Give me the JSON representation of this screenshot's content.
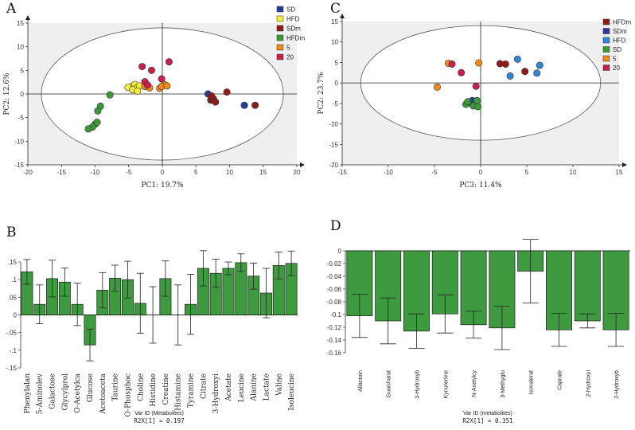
{
  "chart_data": [
    {
      "panel": "A",
      "type": "scatter",
      "xlabel": "PC1: 19.7%",
      "ylabel": "PC2: 12.6%",
      "xlim": [
        -20,
        20
      ],
      "ylim": [
        -15,
        15
      ],
      "xticks": [
        -20,
        -15,
        -10,
        -5,
        0,
        5,
        10,
        15,
        20
      ],
      "yticks": [
        -15,
        -10,
        -5,
        0,
        5,
        10,
        15
      ],
      "ellipse": {
        "cx": 0,
        "cy": 0,
        "rx": 18,
        "ry": 14
      },
      "legend": [
        {
          "name": "SD",
          "color": "#2a3c98"
        },
        {
          "name": "HFD",
          "color": "#f4ee3a"
        },
        {
          "name": "SDm",
          "color": "#8f1b1b"
        },
        {
          "name": "HFDm",
          "color": "#3a9a3a"
        },
        {
          "name": "5",
          "color": "#f08a1a"
        },
        {
          "name": "20",
          "color": "#c8204a"
        }
      ],
      "series": [
        {
          "name": "SD",
          "color": "#2a3c98",
          "points": [
            [
              6.8,
              0
            ],
            [
              12.2,
              -2.4
            ]
          ]
        },
        {
          "name": "HFD",
          "color": "#f4ee3a",
          "points": [
            [
              -4.6,
              1.6
            ],
            [
              -4.1,
              2
            ],
            [
              -3.9,
              1.2
            ],
            [
              -3.4,
              1.7
            ],
            [
              -5.1,
              1.4
            ],
            [
              -4.4,
              0.9
            ],
            [
              -3.7,
              0.6
            ]
          ]
        },
        {
          "name": "SDm",
          "color": "#8f1b1b",
          "points": [
            [
              7.2,
              -1.3
            ],
            [
              7.6,
              -1
            ],
            [
              7.9,
              -1.7
            ],
            [
              9.6,
              0.4
            ],
            [
              13.8,
              -2.4
            ],
            [
              7.3,
              -0.4
            ]
          ]
        },
        {
          "name": "HFDm",
          "color": "#3a9a3a",
          "points": [
            [
              -7.8,
              -0.2
            ],
            [
              -9.2,
              -2.6
            ],
            [
              -9.6,
              -3.6
            ],
            [
              -10,
              -6.4
            ],
            [
              -10.4,
              -7
            ],
            [
              -11,
              -7.4
            ],
            [
              -9.7,
              -6
            ]
          ]
        },
        {
          "name": "5",
          "color": "#f08a1a",
          "points": [
            [
              -0.4,
              1.2
            ],
            [
              0.3,
              2
            ],
            [
              -2.6,
              1.6
            ],
            [
              -1.9,
              1.3
            ],
            [
              -0.1,
              1.6
            ],
            [
              0.7,
              1.7
            ]
          ]
        },
        {
          "name": "20",
          "color": "#c8204a",
          "points": [
            [
              -3,
              5.8
            ],
            [
              -2.6,
              2.6
            ],
            [
              -1.6,
              5
            ],
            [
              1,
              6.8
            ],
            [
              -0.1,
              3.2
            ],
            [
              -2.2,
              1.9
            ]
          ]
        }
      ]
    },
    {
      "panel": "C",
      "type": "scatter",
      "xlabel": "PC3: 11.4%",
      "ylabel": "PC2: 23.7%",
      "xlim": [
        -15,
        15
      ],
      "ylim": [
        -20,
        15
      ],
      "xticks": [
        -15,
        -10,
        -5,
        0,
        5,
        10,
        15
      ],
      "yticks": [
        -20,
        -15,
        -10,
        -5,
        0,
        5,
        10,
        15
      ],
      "ellipse": {
        "cx": 0,
        "cy": 0,
        "rx": 13,
        "ry": 14
      },
      "legend": [
        {
          "name": "HFDm",
          "color": "#8f1b1b"
        },
        {
          "name": "SDm",
          "color": "#2a3c98"
        },
        {
          "name": "HFD",
          "color": "#2f86d6"
        },
        {
          "name": "SD",
          "color": "#3a9a3a"
        },
        {
          "name": "5",
          "color": "#f08a1a"
        },
        {
          "name": "20",
          "color": "#c8204a"
        }
      ],
      "series": [
        {
          "name": "HFDm",
          "color": "#8f1b1b",
          "points": [
            [
              2.1,
              4.7
            ],
            [
              2.7,
              4.6
            ],
            [
              4.8,
              2.8
            ]
          ]
        },
        {
          "name": "SDm",
          "color": "#2a3c98",
          "points": [
            [
              -1.2,
              -4.8
            ],
            [
              -0.9,
              -4.3
            ],
            [
              -0.6,
              -4.5
            ]
          ]
        },
        {
          "name": "HFD",
          "color": "#2f86d6",
          "points": [
            [
              3.2,
              1.7
            ],
            [
              4,
              5.8
            ],
            [
              6.1,
              2.4
            ],
            [
              6.4,
              4.3
            ]
          ]
        },
        {
          "name": "SD",
          "color": "#3a9a3a",
          "points": [
            [
              -1.6,
              -5.2
            ],
            [
              -0.8,
              -5.6
            ],
            [
              -0.3,
              -5.8
            ],
            [
              -1.4,
              -4.6
            ],
            [
              -0.4,
              -4.3
            ]
          ]
        },
        {
          "name": "5",
          "color": "#f08a1a",
          "points": [
            [
              -4.7,
              -1
            ],
            [
              -3.5,
              4.8
            ],
            [
              -0.2,
              4.9
            ]
          ]
        },
        {
          "name": "20",
          "color": "#c8204a",
          "points": [
            [
              -3.1,
              4.6
            ],
            [
              -2.1,
              2.5
            ],
            [
              -0.5,
              -0.8
            ]
          ]
        }
      ]
    },
    {
      "panel": "B",
      "type": "bar",
      "categories": [
        "Phenylalan",
        "5-Aminolev",
        "Galactose",
        "Glycylprol",
        "O-Acetylca",
        "Glucose",
        "Acetoaceta",
        "Taurine",
        "O-Phosphoc",
        "Choline",
        "Histidine",
        "Creatine",
        "Histamine",
        "Tyramine",
        "Citrate",
        "3-Hydroxyi",
        "Acetate",
        "Leucine",
        "Alanine",
        "Lactate",
        "Valine",
        "Isoleucine"
      ],
      "values": [
        0.122,
        0.03,
        0.103,
        0.093,
        0.03,
        -0.085,
        0.07,
        0.104,
        0.1,
        0.033,
        0,
        0.103,
        0,
        0.03,
        0.132,
        0.118,
        0.132,
        0.148,
        0.11,
        0.062,
        0.14,
        0.146
      ],
      "err": [
        0.035,
        0.055,
        0.052,
        0.04,
        0.06,
        0.045,
        0.05,
        0.037,
        0.052,
        0.085,
        0.08,
        0.05,
        0.085,
        0.085,
        0.05,
        0.04,
        0.018,
        0.025,
        0.037,
        0.07,
        0.038,
        0.035
      ],
      "xlabel": "Var ID (Metabolites)",
      "footnote": "R2X[1] = 0.197",
      "ylim": [
        -0.15,
        0.15
      ],
      "yticks": [
        -0.15,
        -0.1,
        -0.05,
        0,
        0.05,
        0.1,
        0.15
      ],
      "color": "#3e9a3e"
    },
    {
      "panel": "D",
      "type": "bar",
      "categories": [
        "Allantoin",
        "Guaicharat",
        "3-Hydroxyb",
        "Kynurenine",
        "N-Acetylcy",
        "3-Methyglu",
        "Isovalerat",
        "Caprate",
        "2-Hydroxyi",
        "2-Hydroxyb"
      ],
      "values": [
        -0.102,
        -0.11,
        -0.126,
        -0.099,
        -0.116,
        -0.121,
        -0.032,
        -0.124,
        -0.11,
        -0.124
      ],
      "err": [
        0.034,
        0.036,
        0.027,
        0.03,
        0.021,
        0.034,
        0.05,
        0.026,
        0.011,
        0.026
      ],
      "xlabel": "Var ID (metabolites)",
      "footnote": "R2X[1] = 0.351",
      "ylim": [
        -0.16,
        0
      ],
      "yticks": [
        -0.16,
        -0.14,
        -0.12,
        -0.1,
        -0.08,
        -0.06,
        -0.04,
        -0.02,
        0
      ],
      "color": "#3e9a3e"
    }
  ],
  "panels": {
    "a": "A",
    "b": "B",
    "c": "C",
    "d": "D"
  }
}
